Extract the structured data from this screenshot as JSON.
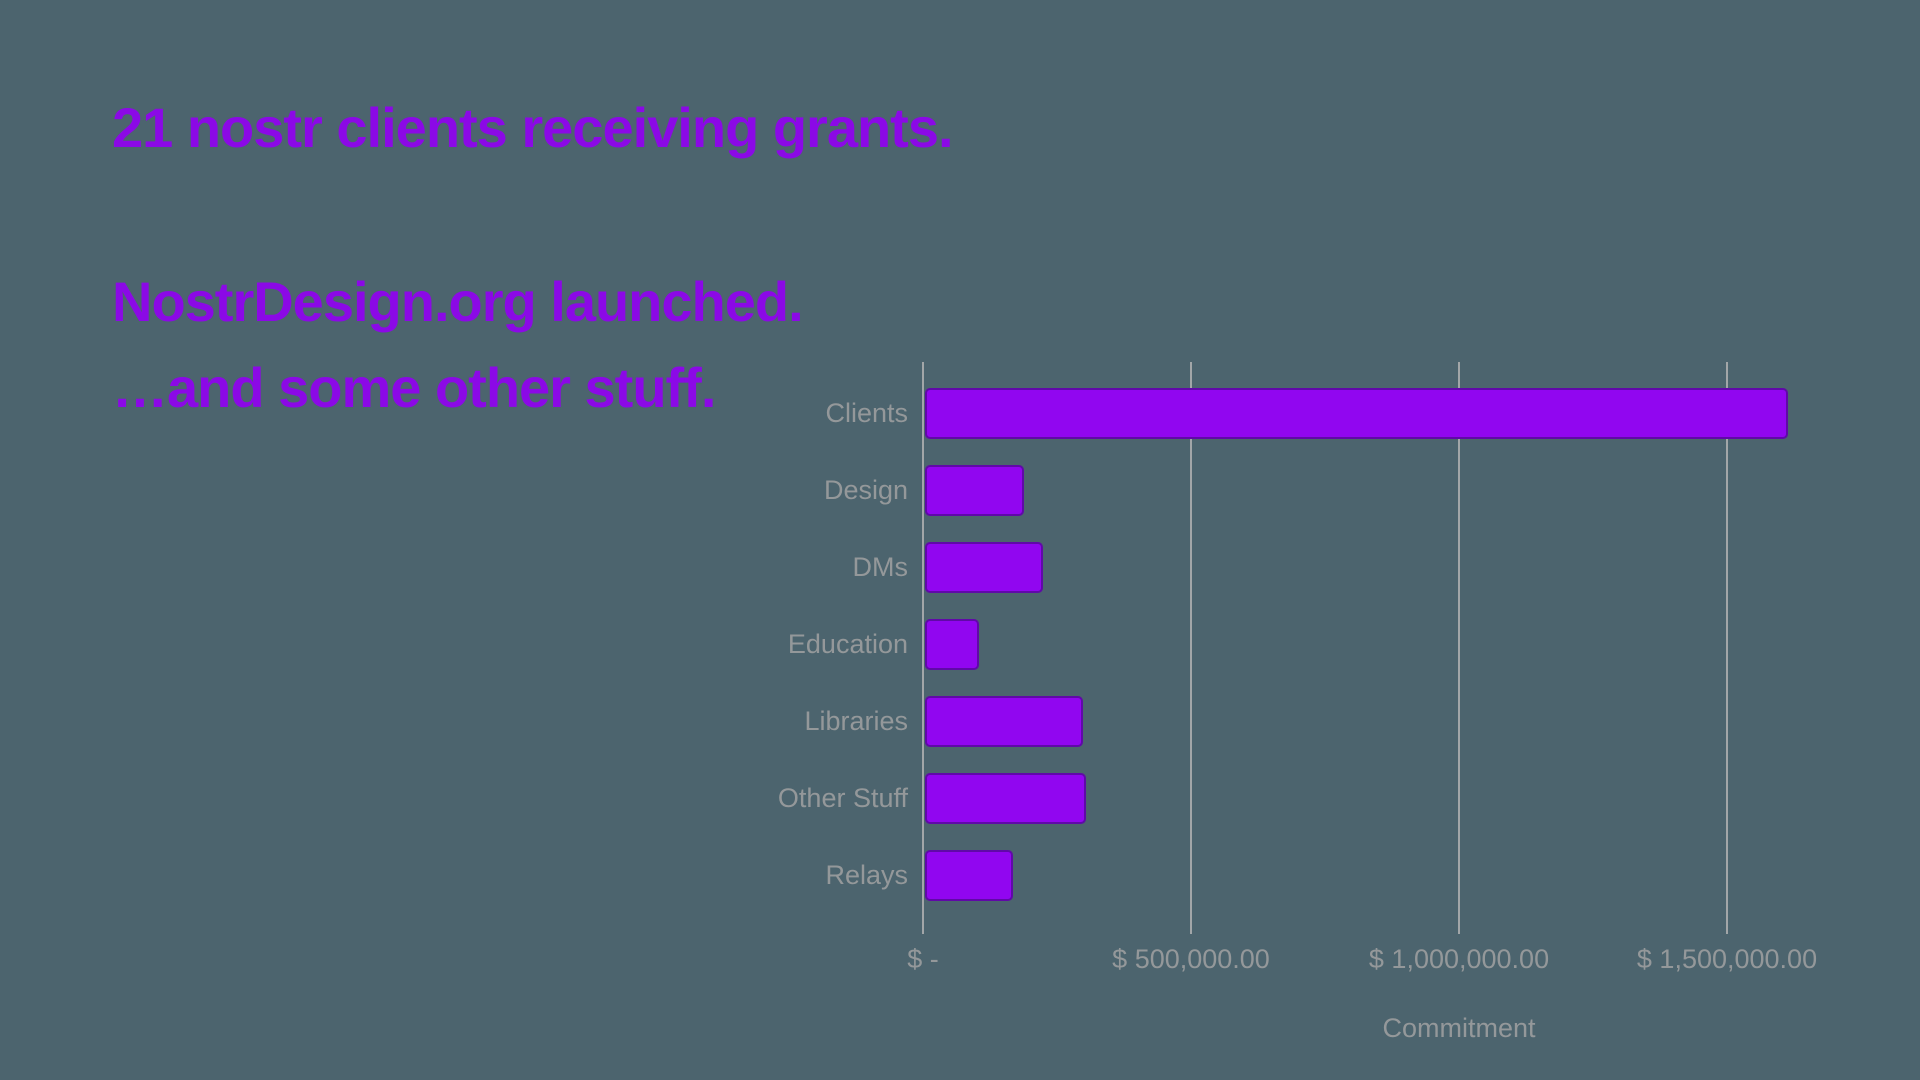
{
  "slide": {
    "heading1": "21 nostr clients receiving grants.",
    "heading2": "NostrDesign.org launched.",
    "heading3": "…and some other stuff."
  },
  "colors": {
    "background": "#4C646E",
    "heading_purple": "#8B09E6",
    "bar_purple": "#9106F0",
    "bar_border": "#6009A8",
    "axis_text": "#94989A",
    "gridline": "#A2A6A8"
  },
  "chart_data": {
    "type": "bar",
    "orientation": "horizontal",
    "title": "",
    "categories": [
      "Clients",
      "Design",
      "DMs",
      "Education",
      "Libraries",
      "Other Stuff",
      "Relays"
    ],
    "values": [
      1610000,
      185000,
      220000,
      100000,
      295000,
      300000,
      165000
    ],
    "xlabel": "Commitment",
    "ylabel": "",
    "xlim": [
      0,
      1660000
    ],
    "x_ticks": [
      {
        "value": 0,
        "label": "$ -"
      },
      {
        "value": 500000,
        "label": "$ 500,000.00"
      },
      {
        "value": 1000000,
        "label": "$ 1,000,000.00"
      },
      {
        "value": 1500000,
        "label": "$ 1,500,000.00"
      }
    ],
    "grid": "vertical",
    "legend": false
  }
}
